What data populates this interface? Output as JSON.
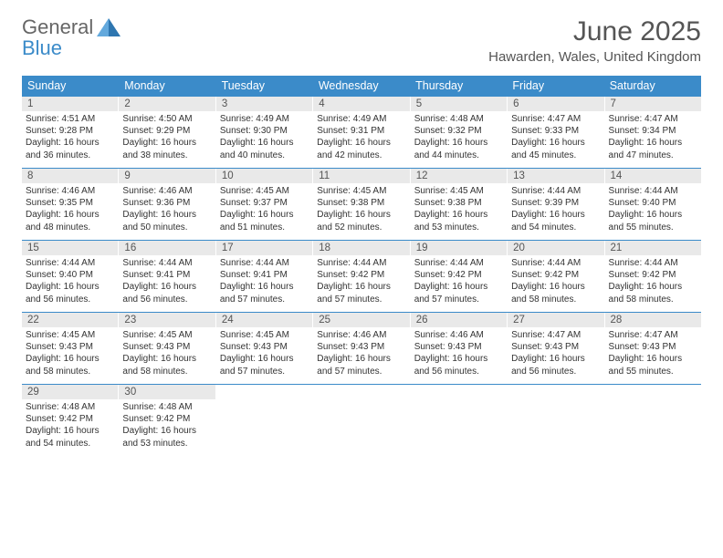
{
  "logo": {
    "text_general": "General",
    "text_blue": "Blue",
    "mark_color_light": "#63a9dd",
    "mark_color_dark": "#2e76b0"
  },
  "header": {
    "month_title": "June 2025",
    "location": "Hawarden, Wales, United Kingdom"
  },
  "theme": {
    "header_row_bg": "#3b8bc9",
    "header_row_text": "#ffffff",
    "day_number_bg": "#e9e9e9",
    "day_number_text": "#555555",
    "week_border": "#3b8bc9",
    "body_text": "#333333",
    "background": "#ffffff"
  },
  "weekdays": [
    "Sunday",
    "Monday",
    "Tuesday",
    "Wednesday",
    "Thursday",
    "Friday",
    "Saturday"
  ],
  "weeks": [
    [
      {
        "day": 1,
        "sunrise": "4:51 AM",
        "sunset": "9:28 PM",
        "daylight": "16 hours and 36 minutes."
      },
      {
        "day": 2,
        "sunrise": "4:50 AM",
        "sunset": "9:29 PM",
        "daylight": "16 hours and 38 minutes."
      },
      {
        "day": 3,
        "sunrise": "4:49 AM",
        "sunset": "9:30 PM",
        "daylight": "16 hours and 40 minutes."
      },
      {
        "day": 4,
        "sunrise": "4:49 AM",
        "sunset": "9:31 PM",
        "daylight": "16 hours and 42 minutes."
      },
      {
        "day": 5,
        "sunrise": "4:48 AM",
        "sunset": "9:32 PM",
        "daylight": "16 hours and 44 minutes."
      },
      {
        "day": 6,
        "sunrise": "4:47 AM",
        "sunset": "9:33 PM",
        "daylight": "16 hours and 45 minutes."
      },
      {
        "day": 7,
        "sunrise": "4:47 AM",
        "sunset": "9:34 PM",
        "daylight": "16 hours and 47 minutes."
      }
    ],
    [
      {
        "day": 8,
        "sunrise": "4:46 AM",
        "sunset": "9:35 PM",
        "daylight": "16 hours and 48 minutes."
      },
      {
        "day": 9,
        "sunrise": "4:46 AM",
        "sunset": "9:36 PM",
        "daylight": "16 hours and 50 minutes."
      },
      {
        "day": 10,
        "sunrise": "4:45 AM",
        "sunset": "9:37 PM",
        "daylight": "16 hours and 51 minutes."
      },
      {
        "day": 11,
        "sunrise": "4:45 AM",
        "sunset": "9:38 PM",
        "daylight": "16 hours and 52 minutes."
      },
      {
        "day": 12,
        "sunrise": "4:45 AM",
        "sunset": "9:38 PM",
        "daylight": "16 hours and 53 minutes."
      },
      {
        "day": 13,
        "sunrise": "4:44 AM",
        "sunset": "9:39 PM",
        "daylight": "16 hours and 54 minutes."
      },
      {
        "day": 14,
        "sunrise": "4:44 AM",
        "sunset": "9:40 PM",
        "daylight": "16 hours and 55 minutes."
      }
    ],
    [
      {
        "day": 15,
        "sunrise": "4:44 AM",
        "sunset": "9:40 PM",
        "daylight": "16 hours and 56 minutes."
      },
      {
        "day": 16,
        "sunrise": "4:44 AM",
        "sunset": "9:41 PM",
        "daylight": "16 hours and 56 minutes."
      },
      {
        "day": 17,
        "sunrise": "4:44 AM",
        "sunset": "9:41 PM",
        "daylight": "16 hours and 57 minutes."
      },
      {
        "day": 18,
        "sunrise": "4:44 AM",
        "sunset": "9:42 PM",
        "daylight": "16 hours and 57 minutes."
      },
      {
        "day": 19,
        "sunrise": "4:44 AM",
        "sunset": "9:42 PM",
        "daylight": "16 hours and 57 minutes."
      },
      {
        "day": 20,
        "sunrise": "4:44 AM",
        "sunset": "9:42 PM",
        "daylight": "16 hours and 58 minutes."
      },
      {
        "day": 21,
        "sunrise": "4:44 AM",
        "sunset": "9:42 PM",
        "daylight": "16 hours and 58 minutes."
      }
    ],
    [
      {
        "day": 22,
        "sunrise": "4:45 AM",
        "sunset": "9:43 PM",
        "daylight": "16 hours and 58 minutes."
      },
      {
        "day": 23,
        "sunrise": "4:45 AM",
        "sunset": "9:43 PM",
        "daylight": "16 hours and 58 minutes."
      },
      {
        "day": 24,
        "sunrise": "4:45 AM",
        "sunset": "9:43 PM",
        "daylight": "16 hours and 57 minutes."
      },
      {
        "day": 25,
        "sunrise": "4:46 AM",
        "sunset": "9:43 PM",
        "daylight": "16 hours and 57 minutes."
      },
      {
        "day": 26,
        "sunrise": "4:46 AM",
        "sunset": "9:43 PM",
        "daylight": "16 hours and 56 minutes."
      },
      {
        "day": 27,
        "sunrise": "4:47 AM",
        "sunset": "9:43 PM",
        "daylight": "16 hours and 56 minutes."
      },
      {
        "day": 28,
        "sunrise": "4:47 AM",
        "sunset": "9:43 PM",
        "daylight": "16 hours and 55 minutes."
      }
    ],
    [
      {
        "day": 29,
        "sunrise": "4:48 AM",
        "sunset": "9:42 PM",
        "daylight": "16 hours and 54 minutes."
      },
      {
        "day": 30,
        "sunrise": "4:48 AM",
        "sunset": "9:42 PM",
        "daylight": "16 hours and 53 minutes."
      },
      null,
      null,
      null,
      null,
      null
    ]
  ],
  "labels": {
    "sunrise_prefix": "Sunrise: ",
    "sunset_prefix": "Sunset: ",
    "daylight_prefix": "Daylight: "
  }
}
